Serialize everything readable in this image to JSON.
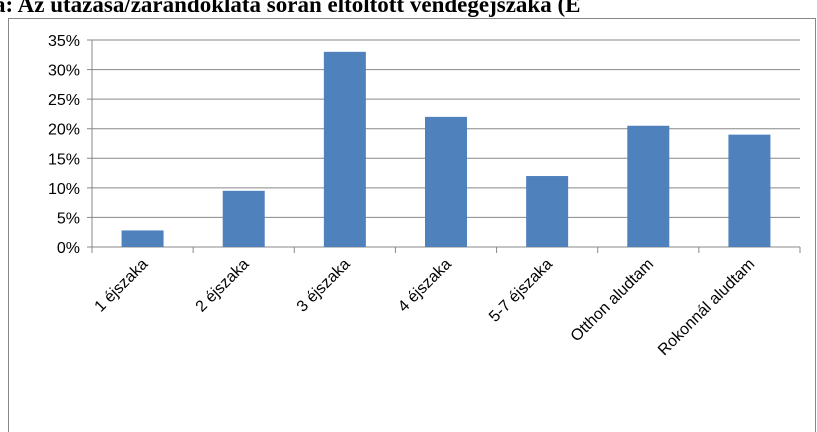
{
  "chart_data": {
    "type": "bar",
    "title": "a: Az utazása/zarándoklata során eltöltött vendégéjszaka (E",
    "categories": [
      "1 éjszaka",
      "2 éjszaka",
      "3 éjszaka",
      "4 éjszaka",
      "5-7 éjszaka",
      "Otthon aludtam",
      "Rokonnál aludtam"
    ],
    "values": [
      2.8,
      9.5,
      33,
      22,
      12,
      20.5,
      19
    ],
    "color": "#4f81bd",
    "ylim": [
      0,
      35
    ],
    "yticks": [
      {
        "value": 0,
        "label": "0%"
      },
      {
        "value": 5,
        "label": "5%"
      },
      {
        "value": 10,
        "label": "10%"
      },
      {
        "value": 15,
        "label": "15%"
      },
      {
        "value": 20,
        "label": "20%"
      },
      {
        "value": 25,
        "label": "25%"
      },
      {
        "value": 30,
        "label": "30%"
      },
      {
        "value": 35,
        "label": "35%"
      }
    ],
    "grid": true
  }
}
